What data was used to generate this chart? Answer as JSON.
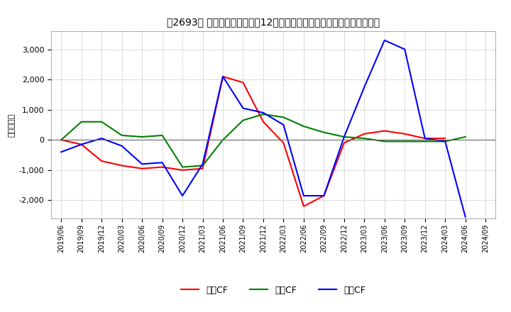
{
  "title": "　2693、 キャッシュフローの12か月移動合計の対前年同期増減額の推移",
  "ylabel": "（百万円）",
  "background_color": "#ffffff",
  "grid_color": "#999999",
  "x_labels": [
    "2019/06",
    "2019/09",
    "2019/12",
    "2020/03",
    "2020/06",
    "2020/09",
    "2020/12",
    "2021/03",
    "2021/06",
    "2021/09",
    "2021/12",
    "2022/03",
    "2022/06",
    "2022/09",
    "2022/12",
    "2023/03",
    "2023/06",
    "2023/09",
    "2023/12",
    "2024/03",
    "2024/06",
    "2024/09"
  ],
  "operating_cf": [
    0,
    -150,
    -700,
    -850,
    -950,
    -900,
    -1000,
    -950,
    2100,
    1900,
    600,
    -100,
    -2200,
    -1850,
    -100,
    200,
    300,
    200,
    50,
    50,
    null,
    null
  ],
  "investing_cf": [
    0,
    600,
    600,
    150,
    100,
    150,
    -900,
    -850,
    0,
    650,
    850,
    750,
    450,
    250,
    100,
    50,
    -50,
    -50,
    -50,
    -50,
    100,
    null
  ],
  "free_cf": [
    -400,
    -150,
    50,
    -200,
    -800,
    -750,
    -1850,
    -800,
    2100,
    1050,
    900,
    500,
    -1850,
    -1850,
    100,
    1750,
    3300,
    3000,
    50,
    -50,
    -2550,
    null
  ],
  "ylim": [
    -2600,
    3600
  ],
  "yticks": [
    -2000,
    -1000,
    0,
    1000,
    2000,
    3000
  ],
  "line_colors": {
    "operating": "#ff0000",
    "investing": "#008000",
    "free": "#0000ff"
  },
  "legend_labels": {
    "operating": "営業CF",
    "investing": "投資CF",
    "free": "フリCF"
  }
}
